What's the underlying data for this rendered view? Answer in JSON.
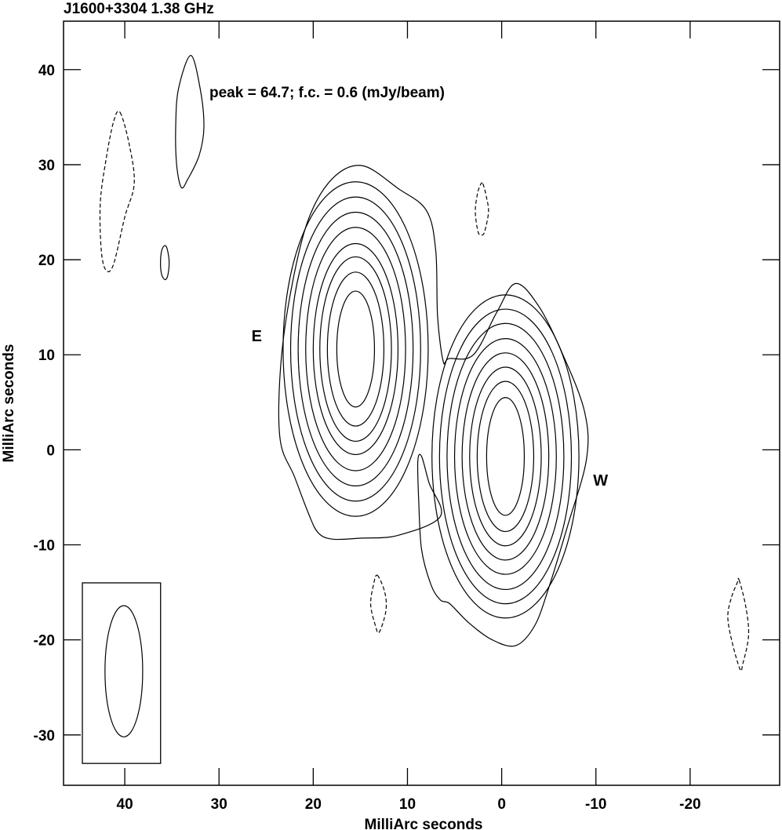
{
  "chart_data": {
    "type": "contour",
    "title": "J1600+3304   1.38 GHz",
    "annotation": "peak = 64.7;  f.c. = 0.6 (mJy/beam)",
    "xlabel": "MilliArc seconds",
    "ylabel": "MilliArc seconds",
    "xlim": [
      46.5,
      -29.5
    ],
    "ylim": [
      -35.3,
      45.1
    ],
    "xticks": [
      40,
      30,
      20,
      10,
      0,
      -10,
      -20
    ],
    "xtick_labels": [
      "40",
      "30",
      "20",
      "10",
      "0",
      "-10",
      "-20"
    ],
    "yticks": [
      40,
      30,
      20,
      10,
      0,
      -10,
      -20,
      -30
    ],
    "ytick_labels": [
      "40",
      "30",
      "20",
      "10",
      "0",
      "-10",
      "-20",
      "-30"
    ],
    "peak_mJy_per_beam": 64.7,
    "first_contour_mJy_per_beam": 0.6,
    "component_labels": [
      {
        "text": "E",
        "x": 26.0,
        "y": 12.0
      },
      {
        "text": "W",
        "x": -10.5,
        "y": -3.2
      }
    ],
    "components": [
      {
        "name": "E",
        "center": [
          15.5,
          10.6
        ],
        "contour_radii": [
          [
            2.0,
            6.1
          ],
          [
            3.0,
            8.1
          ],
          [
            3.8,
            9.7
          ],
          [
            4.5,
            11.1
          ],
          [
            5.3,
            12.8
          ],
          [
            6.1,
            14.4
          ],
          [
            6.9,
            16.0
          ],
          [
            7.7,
            17.6
          ]
        ]
      },
      {
        "name": "W",
        "center": [
          -0.4,
          -0.7
        ],
        "contour_radii": [
          [
            2.0,
            6.2
          ],
          [
            3.0,
            7.9
          ],
          [
            3.8,
            9.4
          ],
          [
            4.6,
            10.9
          ],
          [
            5.4,
            12.4
          ],
          [
            6.2,
            14.0
          ],
          [
            7.0,
            15.5
          ],
          [
            7.8,
            17.0
          ]
        ]
      }
    ],
    "outer_contour": [
      [
        14.8,
        29.9
      ],
      [
        11,
        27.5
      ],
      [
        8,
        25.2
      ],
      [
        7,
        21
      ],
      [
        6.8,
        14
      ],
      [
        6.2,
        9.3
      ],
      [
        5.6,
        9.6
      ],
      [
        3,
        10
      ],
      [
        0.5,
        14.5
      ],
      [
        -1.5,
        17.5
      ],
      [
        -4,
        15
      ],
      [
        -6.5,
        10
      ],
      [
        -8.8,
        4
      ],
      [
        -9,
        -1
      ],
      [
        -7,
        -8
      ],
      [
        -5,
        -14.5
      ],
      [
        -3.5,
        -18.5
      ],
      [
        -1.5,
        -20.6
      ],
      [
        1,
        -20
      ],
      [
        3.5,
        -18.2
      ],
      [
        5.5,
        -16.2
      ],
      [
        6.5,
        -15.8
      ],
      [
        7.5,
        -14.2
      ],
      [
        8.5,
        -10.5
      ],
      [
        8.8,
        -5.5
      ],
      [
        8.9,
        -1.2
      ],
      [
        8.5,
        -0.7
      ],
      [
        7.7,
        -3.5
      ],
      [
        6.5,
        -7
      ],
      [
        11,
        -9
      ],
      [
        15,
        -9.3
      ],
      [
        18,
        -9.4
      ],
      [
        19.5,
        -8.7
      ],
      [
        20.5,
        -6.7
      ],
      [
        22,
        -2.8
      ],
      [
        23.5,
        1
      ],
      [
        23.5,
        8.2
      ],
      [
        22.5,
        16
      ],
      [
        20.6,
        24
      ],
      [
        18,
        28.5
      ]
    ],
    "positive_islands": [
      [
        [
          33.0,
          41.5
        ],
        [
          32.0,
          38
        ],
        [
          31.6,
          34
        ],
        [
          32.1,
          31
        ],
        [
          33.3,
          28.5
        ],
        [
          34.0,
          27.6
        ],
        [
          34.5,
          30
        ],
        [
          34.6,
          34
        ],
        [
          34.3,
          38
        ]
      ],
      [
        [
          35.6,
          21.4
        ],
        [
          35.3,
          20.0
        ],
        [
          35.4,
          18.5
        ],
        [
          35.7,
          17.9
        ],
        [
          36.1,
          18.5
        ],
        [
          36.2,
          20.0
        ],
        [
          36.0,
          21.2
        ]
      ]
    ],
    "negative_contours": [
      [
        [
          40.5,
          35.5
        ],
        [
          39.5,
          32
        ],
        [
          39.0,
          28
        ],
        [
          40.0,
          24.5
        ],
        [
          41.2,
          19.5
        ],
        [
          42.0,
          18.9
        ],
        [
          42.5,
          21
        ],
        [
          42.6,
          26
        ],
        [
          42.0,
          30.5
        ],
        [
          41.2,
          34.5
        ]
      ],
      [
        [
          2.0,
          28.0
        ],
        [
          1.6,
          26.5
        ],
        [
          1.4,
          25.0
        ],
        [
          1.8,
          23.0
        ],
        [
          2.1,
          22.6
        ],
        [
          2.5,
          22.9
        ],
        [
          2.8,
          25.0
        ],
        [
          2.6,
          26.8
        ],
        [
          2.3,
          27.8
        ]
      ],
      [
        [
          13.2,
          -13.2
        ],
        [
          12.4,
          -15.0
        ],
        [
          12.3,
          -17.0
        ],
        [
          13.0,
          -19.2
        ],
        [
          13.4,
          -18.5
        ],
        [
          13.9,
          -16.3
        ],
        [
          13.6,
          -14.2
        ]
      ],
      [
        [
          -25.2,
          -13.7
        ],
        [
          -25.9,
          -16.5
        ],
        [
          -26.2,
          -19.5
        ],
        [
          -25.6,
          -22.5
        ],
        [
          -25.3,
          -23.1
        ],
        [
          -24.4,
          -20.0
        ],
        [
          -24.0,
          -17.5
        ],
        [
          -24.4,
          -15.5
        ],
        [
          -25.0,
          -14.0
        ]
      ]
    ],
    "beam": {
      "box_x": [
        44.5,
        36.2
      ],
      "box_y": [
        -14.0,
        -33.0
      ],
      "center": [
        40.1,
        -23.3
      ],
      "rx": 2.0,
      "ry": 6.9
    }
  }
}
